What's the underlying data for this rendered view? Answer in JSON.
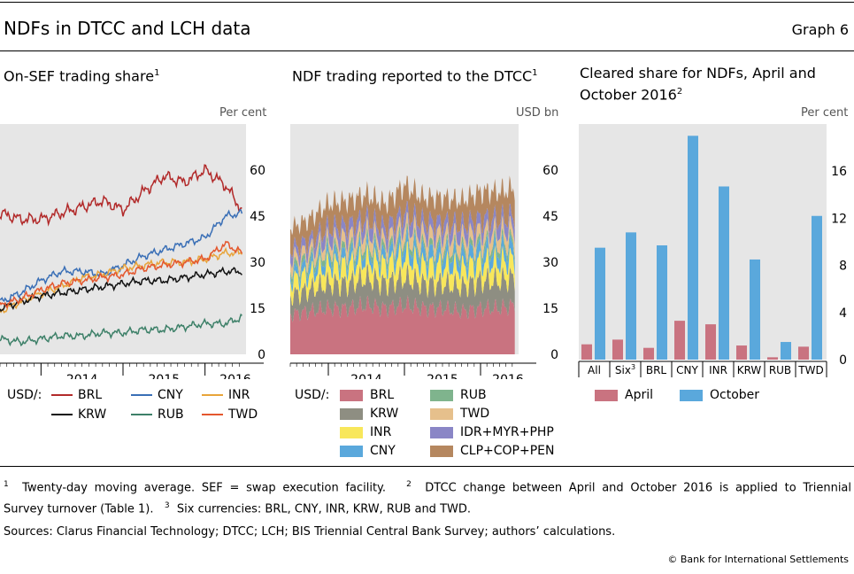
{
  "header": {
    "title": "NDFs in DTCC and LCH data",
    "graph_label": "Graph 6"
  },
  "panels": {
    "left": {
      "title": "On-SEF trading share",
      "title_sup": "1",
      "unit": "Per cent"
    },
    "middle": {
      "title": "NDF trading reported to the DTCC",
      "title_sup": "1",
      "unit": "USD bn"
    },
    "right": {
      "title_line1": "Cleared share for NDFs, April and",
      "title_line2": "October 2016",
      "title_sup": "2",
      "unit": "Per cent"
    }
  },
  "legends": {
    "left_prefix": "USD/:",
    "middle_prefix": "USD/:"
  },
  "footnotes": {
    "n1": "1",
    "t1": "Twenty-day moving average. SEF = swap execution facility.",
    "n2": "2",
    "t2a": "DTCC change between April and October 2016 is applied to Triennial",
    "t2b": "Survey turnover (Table 1).",
    "n3": "3",
    "t3": "Six currencies: BRL, CNY, INR, KRW, RUB and TWD.",
    "sources": "Sources: Clarus Financial Technology; DTCC; LCH; BIS Triennial Central Bank Survey; authors’ calculations."
  },
  "copyright": "© Bank for International Settlements",
  "chart_data": [
    {
      "type": "line",
      "title": "On-SEF trading share",
      "ylabel": "Per cent",
      "ylim": [
        0,
        75
      ],
      "yticks": [
        0,
        15,
        30,
        45,
        60
      ],
      "x_range": [
        2013.5,
        2016.5
      ],
      "xticks": [
        "2014",
        "2015",
        "2016"
      ],
      "x_tick_values": [
        2014.0,
        2015.0,
        2016.0
      ],
      "legend_position": "bottom",
      "series": [
        {
          "name": "BRL",
          "color": "#b22a2a",
          "x": [
            2013.5,
            2013.75,
            2014.0,
            2014.25,
            2014.5,
            2014.75,
            2015.0,
            2015.25,
            2015.5,
            2015.75,
            2016.0,
            2016.25,
            2016.45
          ],
          "values": [
            46,
            44,
            44,
            46,
            48,
            50,
            47,
            53,
            58,
            56,
            60,
            55,
            47
          ]
        },
        {
          "name": "CNY",
          "color": "#3a6fb6",
          "x": [
            2013.5,
            2013.75,
            2014.0,
            2014.25,
            2014.5,
            2014.75,
            2015.0,
            2015.25,
            2015.5,
            2015.75,
            2016.0,
            2016.25,
            2016.45
          ],
          "values": [
            17,
            20,
            24,
            27,
            27,
            26,
            29,
            32,
            34,
            36,
            38,
            45,
            46
          ]
        },
        {
          "name": "INR",
          "color": "#e8a43a",
          "x": [
            2013.5,
            2013.75,
            2014.0,
            2014.25,
            2014.5,
            2014.75,
            2015.0,
            2015.25,
            2015.5,
            2015.75,
            2016.0,
            2016.25,
            2016.45
          ],
          "values": [
            14,
            17,
            20,
            22,
            25,
            26,
            28,
            29,
            30,
            30,
            31,
            33,
            33
          ]
        },
        {
          "name": "KRW",
          "color": "#111111",
          "x": [
            2013.5,
            2013.75,
            2014.0,
            2014.25,
            2014.5,
            2014.75,
            2015.0,
            2015.25,
            2015.5,
            2015.75,
            2016.0,
            2016.25,
            2016.45
          ],
          "values": [
            15,
            17,
            19,
            20,
            21,
            22,
            23,
            24,
            24,
            25,
            26,
            27,
            27
          ]
        },
        {
          "name": "RUB",
          "color": "#3d8068",
          "x": [
            2013.5,
            2013.75,
            2014.0,
            2014.25,
            2014.5,
            2014.75,
            2015.0,
            2015.25,
            2015.5,
            2015.75,
            2016.0,
            2016.25,
            2016.45
          ],
          "values": [
            5,
            4,
            5,
            6,
            6,
            7,
            7,
            8,
            8,
            9,
            10,
            10,
            12
          ]
        },
        {
          "name": "TWD",
          "color": "#e4572e",
          "x": [
            2013.5,
            2013.75,
            2014.0,
            2014.25,
            2014.5,
            2014.75,
            2015.0,
            2015.25,
            2015.5,
            2015.75,
            2016.0,
            2016.25,
            2016.45
          ],
          "values": [
            16,
            18,
            21,
            23,
            24,
            25,
            26,
            28,
            29,
            30,
            31,
            36,
            33
          ]
        }
      ]
    },
    {
      "type": "area",
      "title": "NDF trading reported to the DTCC",
      "ylabel": "USD bn",
      "ylim": [
        0,
        75
      ],
      "yticks": [
        0,
        15,
        30,
        45,
        60
      ],
      "x_range": [
        2013.5,
        2016.5
      ],
      "xticks": [
        "2014",
        "2015",
        "2016"
      ],
      "x_tick_values": [
        2014.0,
        2015.0,
        2016.0
      ],
      "stacked": true,
      "legend_position": "bottom",
      "x": [
        2013.5,
        2013.75,
        2014.0,
        2014.25,
        2014.5,
        2014.75,
        2015.0,
        2015.25,
        2015.5,
        2015.75,
        2016.0,
        2016.25,
        2016.45
      ],
      "series": [
        {
          "name": "BRL",
          "color": "#c97380",
          "values": [
            13,
            14,
            15,
            15,
            16,
            15,
            16,
            15,
            15,
            14,
            15,
            15,
            16
          ]
        },
        {
          "name": "KRW",
          "color": "#8e8e82",
          "values": [
            6,
            7,
            8,
            8,
            9,
            8,
            9,
            8,
            8,
            8,
            9,
            9,
            9
          ]
        },
        {
          "name": "INR",
          "color": "#f8e75b",
          "values": [
            5,
            5,
            6,
            6,
            6,
            6,
            7,
            6,
            6,
            6,
            6,
            6,
            6
          ]
        },
        {
          "name": "CNY",
          "color": "#5aa8dc",
          "values": [
            2,
            3,
            3,
            3,
            3,
            3,
            4,
            4,
            4,
            4,
            4,
            4,
            4
          ]
        },
        {
          "name": "RUB",
          "color": "#7fb48d",
          "values": [
            2,
            2,
            2,
            2,
            2,
            2,
            2,
            2,
            2,
            2,
            2,
            2,
            2
          ]
        },
        {
          "name": "TWD",
          "color": "#e6c08c",
          "values": [
            3,
            3,
            3,
            4,
            4,
            3,
            4,
            4,
            4,
            4,
            4,
            4,
            4
          ]
        },
        {
          "name": "IDR+MYR+PHP",
          "color": "#8a86c6",
          "values": [
            3,
            3,
            4,
            4,
            4,
            4,
            4,
            4,
            4,
            4,
            4,
            4,
            4
          ]
        },
        {
          "name": "CLP+COP+PEN",
          "color": "#b5875f",
          "values": [
            7,
            7,
            8,
            8,
            8,
            8,
            9,
            8,
            8,
            8,
            9,
            9,
            9
          ]
        }
      ]
    },
    {
      "type": "bar",
      "title": "Cleared share for NDFs, April and October 2016",
      "ylabel": "Per cent",
      "ylim": [
        0,
        20
      ],
      "yticks": [
        0,
        4,
        8,
        12,
        16
      ],
      "categories": [
        "All",
        "Six",
        "BRL",
        "CNY",
        "INR",
        "KRW",
        "RUB",
        "TWD"
      ],
      "category_sups": [
        "",
        "3",
        "",
        "",
        "",
        "",
        "",
        ""
      ],
      "legend_position": "bottom",
      "series": [
        {
          "name": "April",
          "color": "#c97380",
          "values": [
            1.3,
            1.7,
            1.0,
            3.3,
            3.0,
            1.2,
            0.2,
            1.1
          ]
        },
        {
          "name": "October",
          "color": "#5aa8dc",
          "values": [
            9.5,
            10.8,
            9.7,
            19.0,
            14.7,
            8.5,
            1.5,
            12.2
          ]
        }
      ]
    }
  ]
}
